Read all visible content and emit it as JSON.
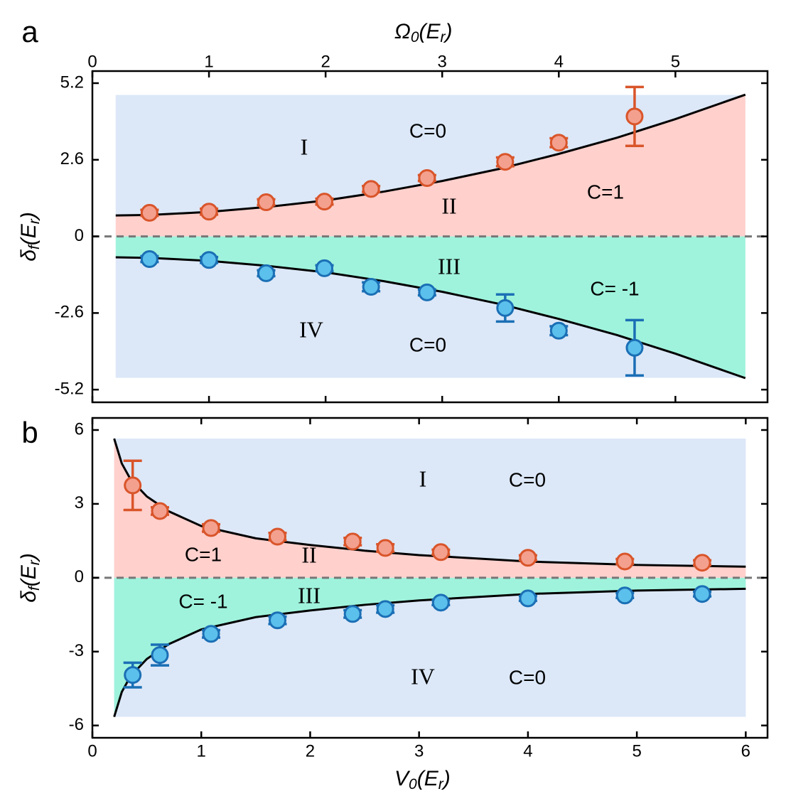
{
  "chart_data": [
    {
      "type": "scatter",
      "panel_label": "a",
      "x_label": [
        "Ω",
        "0",
        "(E",
        "r",
        ")"
      ],
      "y_label": [
        "δ",
        "f",
        "(E",
        "r",
        ")"
      ],
      "x_axis_position": "top",
      "xlim": [
        0,
        5.79
      ],
      "xticks": [
        0,
        1,
        2,
        3,
        4,
        5
      ],
      "ylim": [
        -5.63,
        5.61
      ],
      "yticks": [
        -5.2,
        -2.6,
        0,
        2.6,
        5.2
      ],
      "zero_line": true,
      "shade_x": [
        0.2,
        5.6
      ],
      "shade_y": [
        -4.8,
        4.8
      ],
      "shade_colors": {
        "outer": "#dce8f8",
        "upper": "#ffd0cc",
        "lower": "#9ff3dc"
      },
      "curve": {
        "color": "#000000",
        "x": [
          0.2,
          0.5,
          1,
          1.5,
          2,
          2.5,
          3,
          3.5,
          4,
          4.5,
          5,
          5.6
        ],
        "upper": [
          0.71,
          0.73,
          0.83,
          1.0,
          1.22,
          1.52,
          1.88,
          2.3,
          2.8,
          3.35,
          3.98,
          4.81
        ],
        "lower": [
          -0.71,
          -0.73,
          -0.83,
          -1.0,
          -1.22,
          -1.52,
          -1.88,
          -2.3,
          -2.8,
          -3.35,
          -3.98,
          -4.81
        ]
      },
      "series": [
        {
          "color": "#d9552a",
          "fill": "#f4a08f",
          "x": [
            0.49,
            1.0,
            1.49,
            1.99,
            2.39,
            2.87,
            3.54,
            4.0,
            4.65
          ],
          "values": [
            0.8,
            0.84,
            1.16,
            1.18,
            1.61,
            1.98,
            2.53,
            3.18,
            4.07
          ],
          "errors": [
            0.1,
            0.1,
            0.1,
            0.1,
            0.1,
            0.1,
            0.15,
            0.15,
            1.0
          ]
        },
        {
          "color": "#1b6fb5",
          "fill": "#5bc0eb",
          "x": [
            0.49,
            1.0,
            1.49,
            1.99,
            2.39,
            2.87,
            3.54,
            4.0,
            4.65
          ],
          "values": [
            -0.77,
            -0.8,
            -1.25,
            -1.08,
            -1.71,
            -1.9,
            -2.43,
            -3.2,
            -3.78
          ],
          "errors": [
            0.1,
            0.1,
            0.1,
            0.1,
            0.15,
            0.1,
            0.46,
            0.15,
            0.94
          ]
        }
      ],
      "annotations": [
        "I",
        "C=0",
        "II",
        "C=1",
        "III",
        "C= -1",
        "IV",
        "C=0"
      ]
    },
    {
      "type": "scatter",
      "panel_label": "b",
      "x_label": [
        "V",
        "0",
        "(E",
        "r",
        ")"
      ],
      "y_label": [
        "δ",
        "f",
        "(E",
        "r",
        ")"
      ],
      "x_axis_position": "bottom",
      "xlim": [
        0,
        6.2
      ],
      "xticks": [
        0,
        1,
        2,
        3,
        4,
        5,
        6
      ],
      "ylim": [
        -6.5,
        6.49
      ],
      "yticks": [
        -6,
        -3,
        0,
        3,
        6
      ],
      "zero_line": true,
      "shade_x": [
        0.2,
        6
      ],
      "shade_y": [
        -5.65,
        5.65
      ],
      "shade_colors": {
        "outer": "#dce8f8",
        "upper": "#ffd0cc",
        "lower": "#9ff3dc"
      },
      "curve": {
        "color": "#000000",
        "x": [
          0.2,
          0.27,
          0.35,
          0.5,
          0.7,
          1,
          1.5,
          2,
          2.5,
          3,
          4,
          5,
          6
        ],
        "upper": [
          5.65,
          4.64,
          4.0,
          3.3,
          2.7,
          2.1,
          1.6,
          1.33,
          1.1,
          0.92,
          0.66,
          0.52,
          0.45
        ],
        "lower": [
          -5.65,
          -4.64,
          -4.0,
          -3.3,
          -2.7,
          -2.1,
          -1.6,
          -1.33,
          -1.1,
          -0.92,
          -0.66,
          -0.52,
          -0.45
        ]
      },
      "series": [
        {
          "color": "#d9552a",
          "fill": "#f4a08f",
          "x": [
            0.37,
            0.62,
            1.09,
            1.7,
            2.39,
            2.69,
            3.2,
            4.0,
            4.89,
            5.6
          ],
          "values": [
            3.75,
            2.71,
            2.02,
            1.67,
            1.47,
            1.21,
            1.04,
            0.81,
            0.66,
            0.61
          ],
          "errors": [
            1.0,
            0.15,
            0.15,
            0.15,
            0.15,
            0.15,
            0.1,
            0.1,
            0.1,
            0.1
          ]
        },
        {
          "color": "#1b6fb5",
          "fill": "#5bc0eb",
          "x": [
            0.37,
            0.62,
            1.09,
            1.7,
            2.39,
            2.69,
            3.2,
            4.0,
            4.89,
            5.6
          ],
          "values": [
            -3.95,
            -3.14,
            -2.28,
            -1.73,
            -1.47,
            -1.27,
            -1.01,
            -0.84,
            -0.72,
            -0.66
          ],
          "errors": [
            0.5,
            0.42,
            0.15,
            0.15,
            0.15,
            0.15,
            0.1,
            0.1,
            0.1,
            0.1
          ]
        }
      ],
      "annotations": [
        "I",
        "C=0",
        "C=1",
        "II",
        "C= -1",
        "III",
        "IV",
        "C=0"
      ]
    }
  ]
}
